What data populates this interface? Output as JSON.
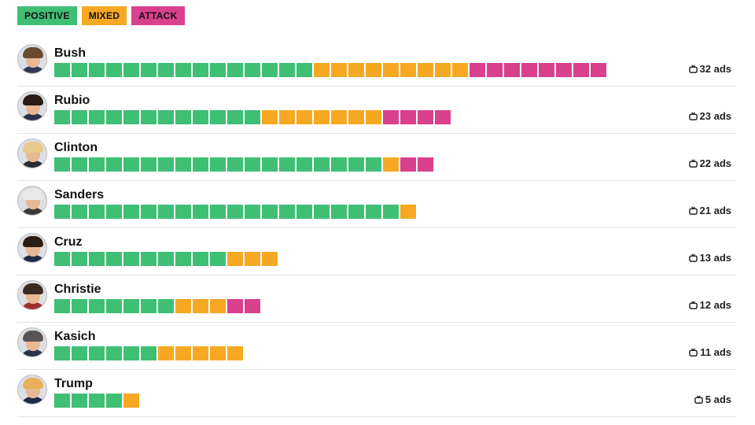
{
  "legend": [
    {
      "label": "POSITIVE",
      "color": "#3fbf74"
    },
    {
      "label": "MIXED",
      "color": "#f7a823"
    },
    {
      "label": "ATTACK",
      "color": "#d9408e"
    }
  ],
  "chart_data": {
    "type": "bar",
    "stacked": true,
    "orientation": "horizontal",
    "unit": "ads",
    "categories": [
      "Bush",
      "Rubio",
      "Clinton",
      "Sanders",
      "Cruz",
      "Christie",
      "Kasich",
      "Trump"
    ],
    "series": [
      {
        "name": "POSITIVE",
        "color": "#3fbf74",
        "values": [
          15,
          12,
          19,
          20,
          10,
          7,
          6,
          4
        ]
      },
      {
        "name": "MIXED",
        "color": "#f7a823",
        "values": [
          9,
          7,
          1,
          1,
          3,
          3,
          5,
          1
        ]
      },
      {
        "name": "ATTACK",
        "color": "#d9408e",
        "values": [
          8,
          4,
          2,
          0,
          0,
          2,
          0,
          0
        ]
      }
    ],
    "totals": [
      32,
      23,
      22,
      21,
      13,
      12,
      11,
      5
    ],
    "total_labels": [
      "32 ads",
      "23 ads",
      "22 ads",
      "21 ads",
      "13 ads",
      "12 ads",
      "11 ads",
      "5 ads"
    ],
    "legend_position": "top-left",
    "grid": false
  },
  "avatars": [
    {
      "hair": "#6b4a2e",
      "body": "#2e3a55"
    },
    {
      "hair": "#2a1d14",
      "body": "#2c3347"
    },
    {
      "hair": "#e8c98a",
      "body": "#2b2b33"
    },
    {
      "hair": "#e9e9e9",
      "body": "#3a3a3a"
    },
    {
      "hair": "#2a1d14",
      "body": "#1f2b45"
    },
    {
      "hair": "#3a2a22",
      "body": "#a02f30"
    },
    {
      "hair": "#5a5552",
      "body": "#2c3347"
    },
    {
      "hair": "#e8b15a",
      "body": "#1e2a48"
    }
  ]
}
